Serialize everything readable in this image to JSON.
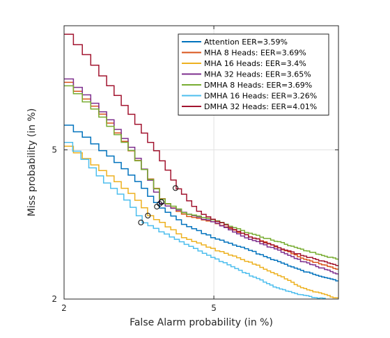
{
  "chart_data": {
    "type": "line",
    "title": "",
    "xlabel": "False Alarm probability (in %)",
    "ylabel": "Miss probability (in %)",
    "x_scale": "probit",
    "y_scale": "probit",
    "xlim": [
      2,
      9.6
    ],
    "ylim": [
      2,
      9.6
    ],
    "x_ticks": [
      2,
      5
    ],
    "y_ticks": [
      2,
      5
    ],
    "x_tick_labels": [
      "2",
      "5"
    ],
    "y_tick_labels": [
      "2",
      "5"
    ],
    "grid": true,
    "legend_position": "top-right",
    "series": [
      {
        "name": "Attention EER=3.59%",
        "color": "#0072BD",
        "x": [
          2.0,
          2.5,
          3.0,
          3.59,
          4.2,
          5.0,
          6.0,
          7.0,
          8.0,
          9.6
        ],
        "y": [
          5.75,
          5.0,
          4.35,
          3.59,
          3.2,
          2.95,
          2.75,
          2.56,
          2.4,
          2.25
        ],
        "eer": 3.59
      },
      {
        "name": "MHA 8 Heads: EER=3.69%",
        "color": "#D95319",
        "x": [
          2.0,
          2.5,
          3.0,
          3.69,
          4.2,
          5.0,
          6.0,
          7.0,
          8.0,
          9.6
        ],
        "y": [
          7.2,
          6.1,
          5.0,
          3.69,
          3.4,
          3.25,
          3.0,
          2.8,
          2.6,
          2.42
        ],
        "eer": 3.69
      },
      {
        "name": "MHA 16 Heads: EER=3.4%",
        "color": "#EDB120",
        "x": [
          2.0,
          2.5,
          3.0,
          3.4,
          4.2,
          5.0,
          6.0,
          7.0,
          8.0,
          9.6
        ],
        "y": [
          5.1,
          4.45,
          3.9,
          3.4,
          2.95,
          2.75,
          2.55,
          2.35,
          2.15,
          2.0
        ],
        "eer": 3.4
      },
      {
        "name": "MHA 32 Heads: EER=3.65%",
        "color": "#7E2F8E",
        "x": [
          2.0,
          2.5,
          3.0,
          3.65,
          4.2,
          5.0,
          6.0,
          7.0,
          8.0,
          9.6
        ],
        "y": [
          7.35,
          6.2,
          5.1,
          3.65,
          3.45,
          3.25,
          2.95,
          2.75,
          2.55,
          2.35
        ],
        "eer": 3.65
      },
      {
        "name": "DMHA 8 Heads: EER=3.69%",
        "color": "#77AC30",
        "x": [
          2.0,
          2.5,
          3.0,
          3.69,
          4.2,
          5.0,
          6.0,
          7.0,
          8.0,
          9.6
        ],
        "y": [
          7.1,
          6.0,
          5.0,
          3.69,
          3.45,
          3.3,
          3.05,
          2.9,
          2.75,
          2.58
        ],
        "eer": 3.69
      },
      {
        "name": "DMHA 16 Heads: EER=3.26%",
        "color": "#4DBEEE",
        "x": [
          2.0,
          2.5,
          3.0,
          3.26,
          4.2,
          5.0,
          6.0,
          7.0,
          8.0,
          9.0
        ],
        "y": [
          5.2,
          4.25,
          3.65,
          3.26,
          2.85,
          2.6,
          2.35,
          2.15,
          2.05,
          2.0
        ],
        "eer": 3.26
      },
      {
        "name": "DMHA 32 Heads: EER=4.01%",
        "color": "#A2142F",
        "x": [
          2.0,
          2.5,
          3.0,
          4.01,
          4.5,
          5.0,
          6.0,
          7.0,
          8.0,
          9.6
        ],
        "y": [
          9.2,
          7.5,
          6.1,
          4.01,
          3.5,
          3.3,
          3.0,
          2.8,
          2.65,
          2.48
        ],
        "eer": 4.01
      }
    ]
  }
}
